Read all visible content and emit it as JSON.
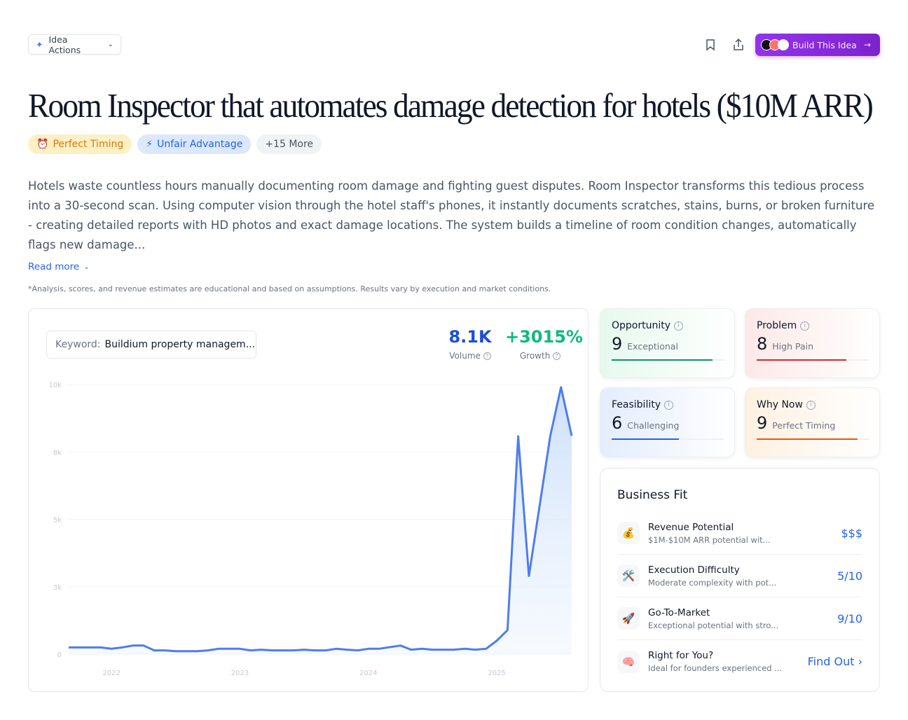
{
  "header": {
    "actions_label": "Idea Actions",
    "build_label": "Build This Idea"
  },
  "title": "Room Inspector that automates damage detection for hotels ($10M ARR)",
  "tags": [
    {
      "label": "Perfect Timing",
      "icon": "⏰"
    },
    {
      "label": "Unfair Advantage",
      "icon": "⚡"
    },
    {
      "label": "+15 More"
    }
  ],
  "description": "Hotels waste countless hours manually documenting room damage and fighting guest disputes. Room Inspector transforms this tedious process into a 30-second scan. Using computer vision through the hotel staff's phones, it instantly documents scratches, stains, burns, or broken furniture - creating detailed reports with HD photos and exact damage locations. The system builds a timeline of room condition changes, automatically flags new damage...",
  "read_more": "Read more",
  "disclaimer": "*Analysis, scores, and revenue estimates are educational and based on assumptions. Results vary by execution and market conditions.",
  "trend": {
    "keyword_label": "Keyword:",
    "keyword_value": "Buildium property managem...",
    "volume": "8.1K",
    "volume_label": "Volume",
    "growth": "+3015%",
    "growth_label": "Growth"
  },
  "chart_data": {
    "type": "area",
    "x_start": "2021-09",
    "x_step": "month",
    "values": [
      250,
      250,
      250,
      250,
      200,
      250,
      320,
      320,
      140,
      140,
      110,
      110,
      110,
      140,
      200,
      200,
      200,
      140,
      165,
      140,
      140,
      140,
      165,
      140,
      140,
      200,
      165,
      140,
      200,
      200,
      260,
      320,
      165,
      200,
      165,
      165,
      165,
      200,
      165,
      200,
      500,
      890,
      8080,
      2900,
      5500,
      8100,
      9900,
      8100
    ],
    "yticks": [
      {
        "v": 0,
        "label": "0"
      },
      {
        "v": 2500,
        "label": "3k"
      },
      {
        "v": 5000,
        "label": "5k"
      },
      {
        "v": 7500,
        "label": "8k"
      },
      {
        "v": 10000,
        "label": "10k"
      }
    ],
    "xticks": [
      {
        "date": "2022-01",
        "label": "2022"
      },
      {
        "date": "2023-01",
        "label": "2023"
      },
      {
        "date": "2024-01",
        "label": "2024"
      },
      {
        "date": "2025-01",
        "label": "2025"
      }
    ],
    "ylim": [
      0,
      10000
    ],
    "grid": true,
    "color": "#4f7cf0"
  },
  "scores": [
    {
      "title": "Opportunity",
      "value": "9",
      "label": "Exceptional",
      "pct": 90,
      "color": "#059669",
      "bg": "#e6f9ee"
    },
    {
      "title": "Problem",
      "value": "8",
      "label": "High Pain",
      "pct": 80,
      "color": "#dc2626",
      "bg": "#fde8e8"
    },
    {
      "title": "Feasibility",
      "value": "6",
      "label": "Challenging",
      "pct": 60,
      "color": "#2563eb",
      "bg": "#e3edfd"
    },
    {
      "title": "Why Now",
      "value": "9",
      "label": "Perfect Timing",
      "pct": 90,
      "color": "#ea580c",
      "bg": "#fef1e1"
    }
  ],
  "business_fit": {
    "title": "Business Fit",
    "rows": [
      {
        "icon": "💰",
        "title": "Revenue Potential",
        "sub": "$1M-$10M ARR potential wit...",
        "value": "$$$"
      },
      {
        "icon": "🛠️",
        "title": "Execution Difficulty",
        "sub": "Moderate complexity with pot...",
        "value": "5/10"
      },
      {
        "icon": "🚀",
        "title": "Go-To-Market",
        "sub": "Exceptional potential with stro...",
        "value": "9/10"
      },
      {
        "icon": "🧠",
        "title": "Right for You?",
        "sub": "Ideal for founders experienced ...",
        "value": "Find Out ›"
      }
    ]
  }
}
